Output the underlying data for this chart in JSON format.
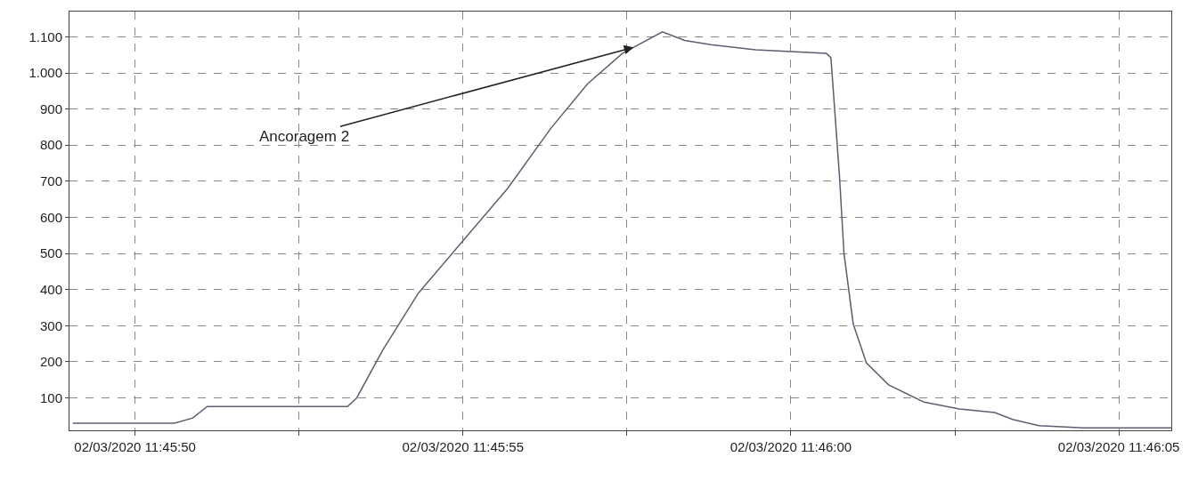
{
  "chart_data": {
    "type": "line",
    "color": "#5a6070",
    "x": [
      "2020-03-02T11:45:49.05",
      "2020-03-02T11:45:50.6",
      "2020-03-02T11:45:50.88",
      "2020-03-02T11:45:51.1",
      "2020-03-02T11:45:53.24",
      "2020-03-02T11:45:53.38",
      "2020-03-02T11:45:53.78",
      "2020-03-02T11:45:54.32",
      "2020-03-02T11:45:55",
      "2020-03-02T11:45:55.68",
      "2020-03-02T11:45:56.35",
      "2020-03-02T11:45:56.9",
      "2020-03-02T11:45:57.43",
      "2020-03-02T11:45:58.04",
      "2020-03-02T11:45:58.38",
      "2020-03-02T11:45:58.78",
      "2020-03-02T11:45:59.46",
      "2020-03-02T11:46:00.54",
      "2020-03-02T11:46:00.61",
      "2020-03-02T11:46:00.74",
      "2020-03-02T11:46:00.81",
      "2020-03-02T11:46:00.95",
      "2020-03-02T11:46:01.15",
      "2020-03-02T11:46:01.49",
      "2020-03-02T11:46:02.03",
      "2020-03-02T11:46:02.57",
      "2020-03-02T11:46:03.11",
      "2020-03-02T11:46:03.38",
      "2020-03-02T11:46:03.78",
      "2020-03-02T11:46:04.46",
      "2020-03-02T11:46:05.8"
    ],
    "values": [
      30,
      30,
      44,
      76,
      76,
      100,
      233,
      390,
      535,
      680,
      849,
      970,
      1054,
      1114,
      1090,
      1078,
      1064,
      1054,
      1042,
      716,
      499,
      305,
      197,
      136,
      88,
      69,
      59,
      40,
      23,
      17,
      17
    ],
    "xlim": [
      "2020-03-02T11:45:49",
      "2020-03-02T11:46:05.8"
    ],
    "ylim": [
      10,
      1170
    ],
    "xticks": [
      {
        "value": "2020-03-02T11:45:50",
        "label": "02/03/2020 11:45:50"
      },
      {
        "value": "2020-03-02T11:45:52.5",
        "label": null
      },
      {
        "value": "2020-03-02T11:45:55",
        "label": "02/03/2020 11:45:55"
      },
      {
        "value": "2020-03-02T11:45:57.5",
        "label": null
      },
      {
        "value": "2020-03-02T11:46:00",
        "label": "02/03/2020 11:46:00"
      },
      {
        "value": "2020-03-02T11:46:02.5",
        "label": null
      },
      {
        "value": "2020-03-02T11:46:05",
        "label": "02/03/2020 11:46:05"
      }
    ],
    "yticks": [
      100,
      200,
      300,
      400,
      500,
      600,
      700,
      800,
      900,
      {
        "value": 1000,
        "label": "1.000"
      },
      {
        "value": 1100,
        "label": "1.100"
      }
    ],
    "grid": true,
    "marker": "none",
    "line_style": "solid",
    "annotations": [
      {
        "text": "Ancoragem 2",
        "x": "2020-03-02T11:45:57.6",
        "y": 1071
      }
    ]
  }
}
